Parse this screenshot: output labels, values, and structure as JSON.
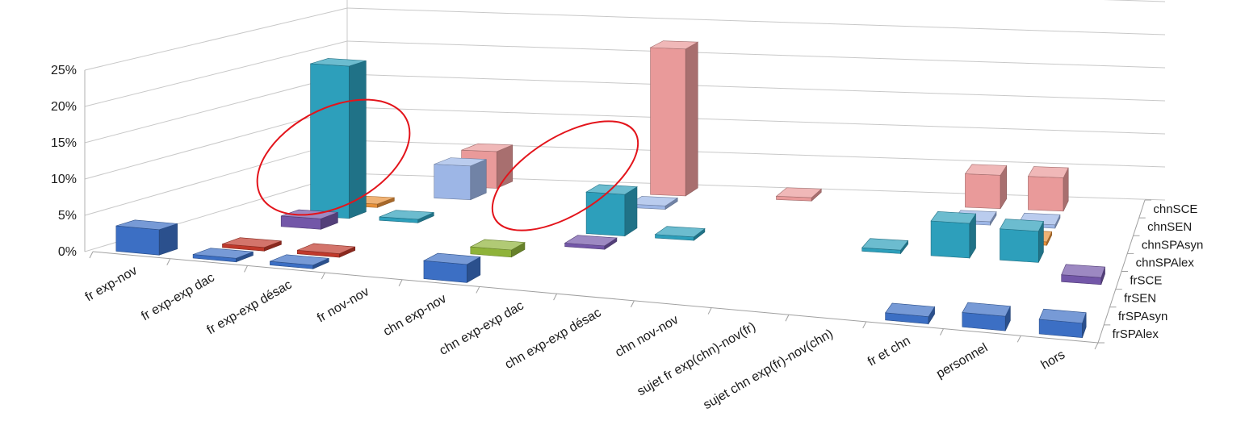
{
  "chart_data": {
    "type": "bar",
    "subtype": "3d-column",
    "title": "",
    "xlabel": "",
    "ylabel": "",
    "ylim": [
      0,
      25
    ],
    "yticks": [
      0,
      5,
      10,
      15,
      20,
      25
    ],
    "ytick_labels": [
      "0%",
      "5%",
      "10%",
      "15%",
      "20%",
      "25%"
    ],
    "grid": true,
    "categories": [
      "fr exp-nov",
      "fr exp-exp dac",
      "fr exp-exp désac",
      "fr nov-nov",
      "chn exp-nov",
      "chn exp-exp dac",
      "chn exp-exp désac",
      "chn nov-nov",
      "sujet fr exp(chn)-nov(fr)",
      "sujet chn exp(fr)-nov(chn)",
      "fr et chn",
      "personnel",
      "hors"
    ],
    "series_labels": [
      "frSPAlex",
      "frSPAsyn",
      "frSEN",
      "frSCE",
      "chnSPAlex",
      "chnSPAsyn",
      "chnSEN",
      "chnSCE"
    ],
    "series": [
      {
        "name": "frSPAlex",
        "color": "#3c6fc4",
        "values": [
          3.5,
          0.5,
          0.5,
          0,
          2.5,
          0,
          0,
          0,
          0,
          0,
          1,
          2,
          2
        ]
      },
      {
        "name": "frSPAsyn",
        "color": "#c0392b",
        "values": [
          0,
          0.5,
          0.5,
          0,
          0,
          0,
          0,
          0,
          0,
          0,
          0,
          0,
          0
        ]
      },
      {
        "name": "frSEN",
        "color": "#8fb33a",
        "values": [
          0,
          0,
          0,
          0,
          1,
          0,
          0,
          0,
          0,
          0,
          0,
          0,
          0
        ]
      },
      {
        "name": "frSCE",
        "color": "#7357a8",
        "values": [
          0,
          1.5,
          0,
          0,
          0,
          0.5,
          0,
          0,
          0,
          0,
          0,
          0,
          1
        ]
      },
      {
        "name": "chnSPAlex",
        "color": "#2d9fbb",
        "values": [
          0,
          22,
          0.5,
          0,
          0,
          6,
          0.5,
          0,
          0,
          0.5,
          5,
          4.5,
          0
        ]
      },
      {
        "name": "chnSPAsyn",
        "color": "#e8913a",
        "values": [
          0,
          0.5,
          0,
          0,
          0,
          0,
          0,
          0,
          0,
          0,
          0,
          0.5,
          0
        ]
      },
      {
        "name": "chnSEN",
        "color": "#9db6e6",
        "values": [
          0,
          0,
          5,
          0,
          0,
          0.5,
          0,
          0,
          0,
          0,
          0.5,
          0.5,
          0
        ]
      },
      {
        "name": "chnSCE",
        "color": "#e99a9a",
        "values": [
          0,
          0,
          5.5,
          0,
          0,
          22,
          0,
          0.5,
          0,
          0,
          5,
          5,
          0
        ]
      }
    ],
    "annotations": [
      "red ellipse around 'fr exp-exp dac' to 'fr nov-nov' columns",
      "red ellipse around 'chn exp-exp dac' to 'chn exp-exp désac' columns"
    ]
  }
}
